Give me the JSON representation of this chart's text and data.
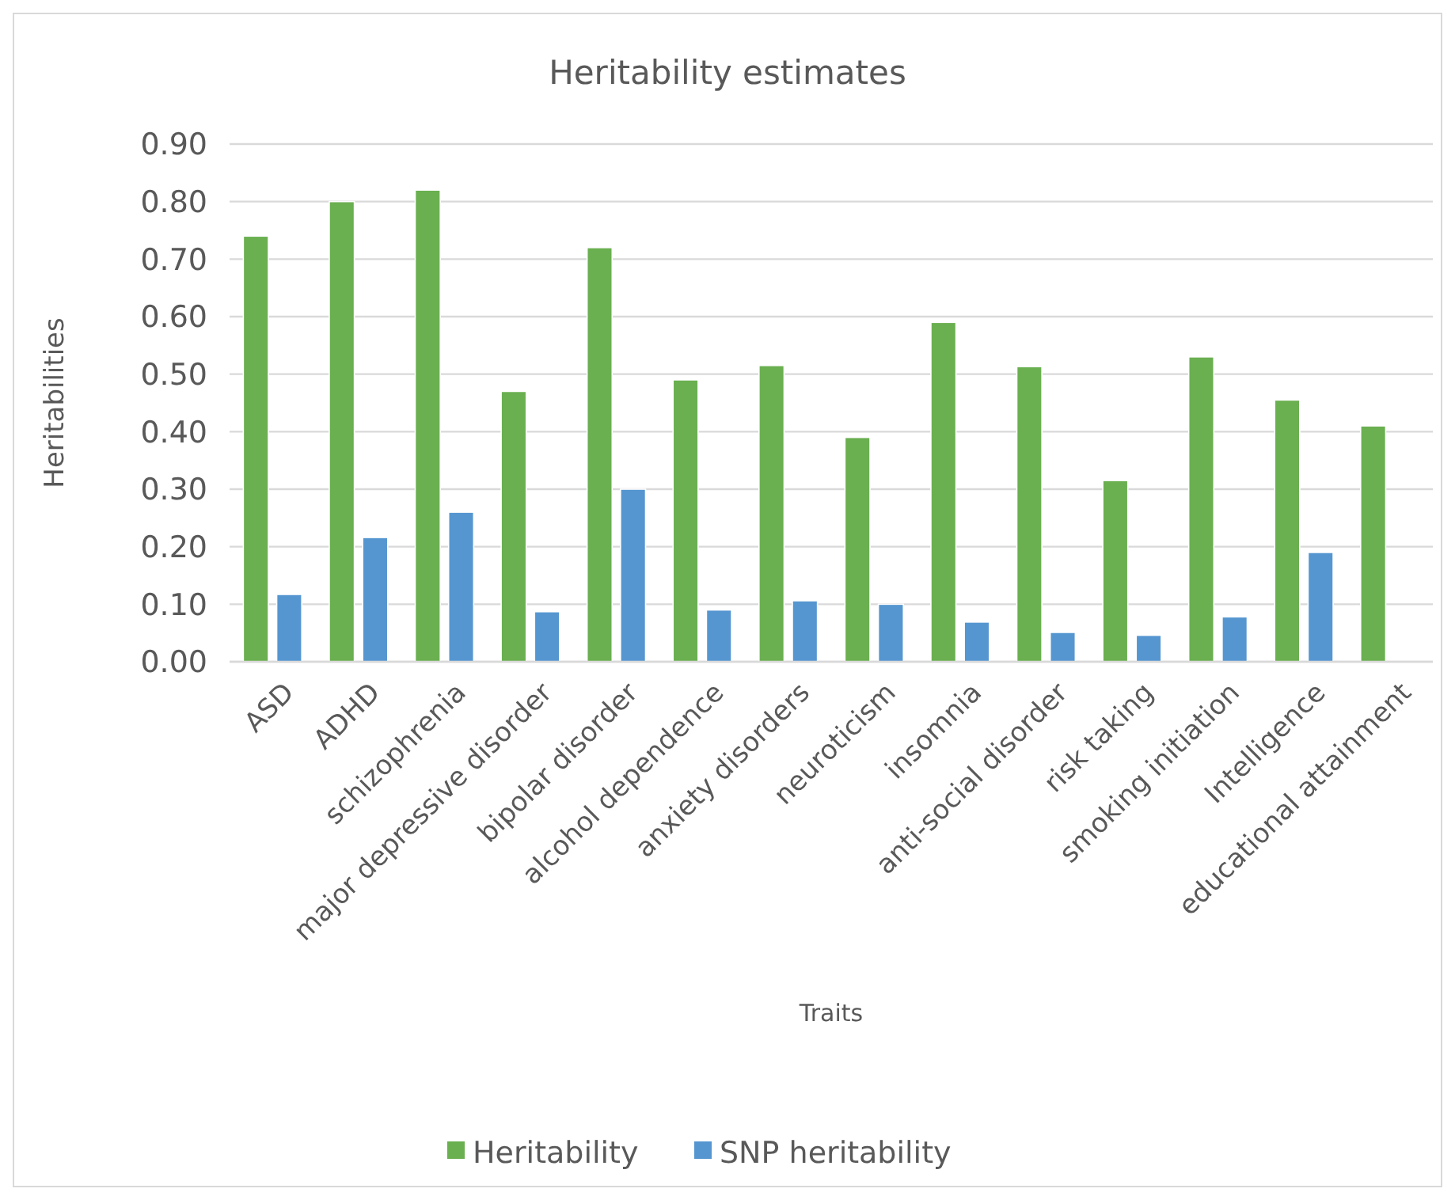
{
  "chart_data": {
    "type": "bar",
    "title": "Heritability estimates",
    "xlabel": "Traits",
    "ylabel": "Heritabilities",
    "categories": [
      "ASD",
      "ADHD",
      "schizophrenia",
      "major depressive disorder",
      "bipolar disorder",
      "alcohol dependence",
      "anxiety disorders",
      "neuroticism",
      "insomnia",
      "anti-social disorder",
      "risk taking",
      "smoking initiation",
      "Intelligence",
      "educational attainment"
    ],
    "series": [
      {
        "name": "Heritability",
        "color": "#6aaf50",
        "values": [
          0.74,
          0.8,
          0.82,
          0.47,
          0.72,
          0.49,
          0.515,
          0.39,
          0.59,
          0.513,
          0.315,
          0.53,
          0.455,
          0.41
        ]
      },
      {
        "name": "SNP heritability",
        "color": "#5596d0",
        "values": [
          0.117,
          0.216,
          0.26,
          0.087,
          0.3,
          0.09,
          0.106,
          0.1,
          0.069,
          0.051,
          0.046,
          0.078,
          0.19,
          null
        ]
      }
    ],
    "ylim": [
      0,
      0.9
    ],
    "yticks": [
      {
        "value": 0,
        "label": "0.00"
      },
      {
        "value": 0.1,
        "label": "0.10"
      },
      {
        "value": 0.2,
        "label": "0.20"
      },
      {
        "value": 0.3,
        "label": "0.30"
      },
      {
        "value": 0.4,
        "label": "0.40"
      },
      {
        "value": 0.5,
        "label": "0.50"
      },
      {
        "value": 0.6,
        "label": "0.60"
      },
      {
        "value": 0.7,
        "label": "0.70"
      },
      {
        "value": 0.8,
        "label": "0.80"
      },
      {
        "value": 0.9,
        "label": "0.90"
      }
    ],
    "grid": "y",
    "legend": "bottom"
  }
}
